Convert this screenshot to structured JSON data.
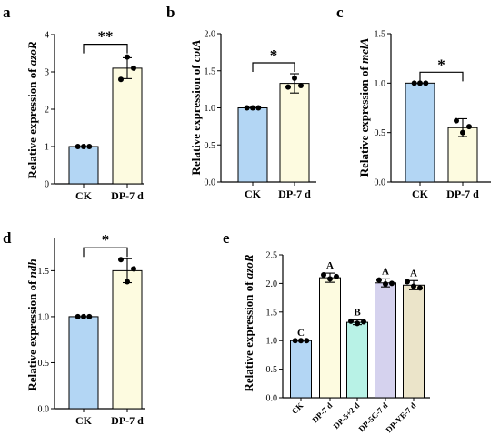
{
  "chart_data": [
    {
      "panel": "a",
      "type": "bar",
      "categories": [
        "CK",
        "DP-7 d"
      ],
      "values": [
        1.0,
        3.1
      ],
      "errors": [
        0.0,
        0.28
      ],
      "points": [
        [
          1.0,
          1.0,
          1.0
        ],
        [
          2.8,
          3.4,
          3.1
        ]
      ],
      "colors": [
        "#b3d6f4",
        "#fdfbe0"
      ],
      "ylabel_prefix": "Relative expression of ",
      "ylabel_gene": "azoR",
      "ylim": [
        0,
        4
      ],
      "yticks": [
        "0",
        "1",
        "2",
        "3",
        "4"
      ],
      "significance": "**"
    },
    {
      "panel": "b",
      "type": "bar",
      "categories": [
        "CK",
        "DP-7 d"
      ],
      "values": [
        1.0,
        1.33
      ],
      "errors": [
        0.0,
        0.13
      ],
      "points": [
        [
          1.0,
          1.0,
          1.0
        ],
        [
          1.28,
          1.4,
          1.3
        ]
      ],
      "colors": [
        "#b3d6f4",
        "#fdfbe0"
      ],
      "ylabel_prefix": "Relative expression of ",
      "ylabel_gene": "cotA",
      "ylim": [
        0,
        2.0
      ],
      "yticks": [
        "0.0",
        "0.5",
        "1.0",
        "1.5",
        "2.0"
      ],
      "significance": "*"
    },
    {
      "panel": "c",
      "type": "bar",
      "categories": [
        "CK",
        "DP-7 d"
      ],
      "values": [
        1.0,
        0.55
      ],
      "errors": [
        0.0,
        0.09
      ],
      "points": [
        [
          1.0,
          1.0,
          1.0
        ],
        [
          0.62,
          0.5,
          0.56
        ]
      ],
      "colors": [
        "#b3d6f4",
        "#fdfbe0"
      ],
      "ylabel_prefix": "Relative expression of ",
      "ylabel_gene": "melA",
      "ylim": [
        0,
        1.5
      ],
      "yticks": [
        "0.0",
        "0.5",
        "1.0",
        "1.5"
      ],
      "significance": "*"
    },
    {
      "panel": "d",
      "type": "bar",
      "categories": [
        "CK",
        "DP-7 d"
      ],
      "values": [
        1.0,
        1.5
      ],
      "errors": [
        0.0,
        0.13
      ],
      "points": [
        [
          1.0,
          1.0,
          1.0
        ],
        [
          1.62,
          1.38,
          1.52
        ]
      ],
      "colors": [
        "#b3d6f4",
        "#fdfbe0"
      ],
      "ylabel_prefix": "Relative expression of ",
      "ylabel_gene": "ndh",
      "ylim": [
        0,
        1.85
      ],
      "yticks": [
        "0.0",
        "0.5",
        "1.0",
        "1.5"
      ],
      "significance": "*"
    },
    {
      "panel": "e",
      "type": "bar",
      "categories": [
        "CK",
        "DP-7 d",
        "DP-5+2 d",
        "DP-5C-7 d",
        "DP-YE-7 d"
      ],
      "values": [
        1.0,
        2.1,
        1.32,
        2.01,
        1.97
      ],
      "errors": [
        0.0,
        0.08,
        0.04,
        0.07,
        0.08
      ],
      "points": [
        [
          1.0,
          1.0,
          1.0
        ],
        [
          2.15,
          2.08,
          2.12
        ],
        [
          1.34,
          1.3,
          1.33
        ],
        [
          2.06,
          1.99,
          2.0
        ],
        [
          2.03,
          1.95,
          1.92
        ]
      ],
      "colors": [
        "#b3d6f4",
        "#fdfbe0",
        "#b8f2e6",
        "#d5d2ee",
        "#ebe4c9"
      ],
      "group_labels": [
        "C",
        "A",
        "B",
        "A",
        "A"
      ],
      "ylabel_prefix": "Relative expression of ",
      "ylabel_gene": "azoR",
      "ylim": [
        0,
        2.5
      ],
      "yticks": [
        "0.0",
        "0.5",
        "1.0",
        "1.5",
        "2.0",
        "2.5"
      ]
    }
  ]
}
